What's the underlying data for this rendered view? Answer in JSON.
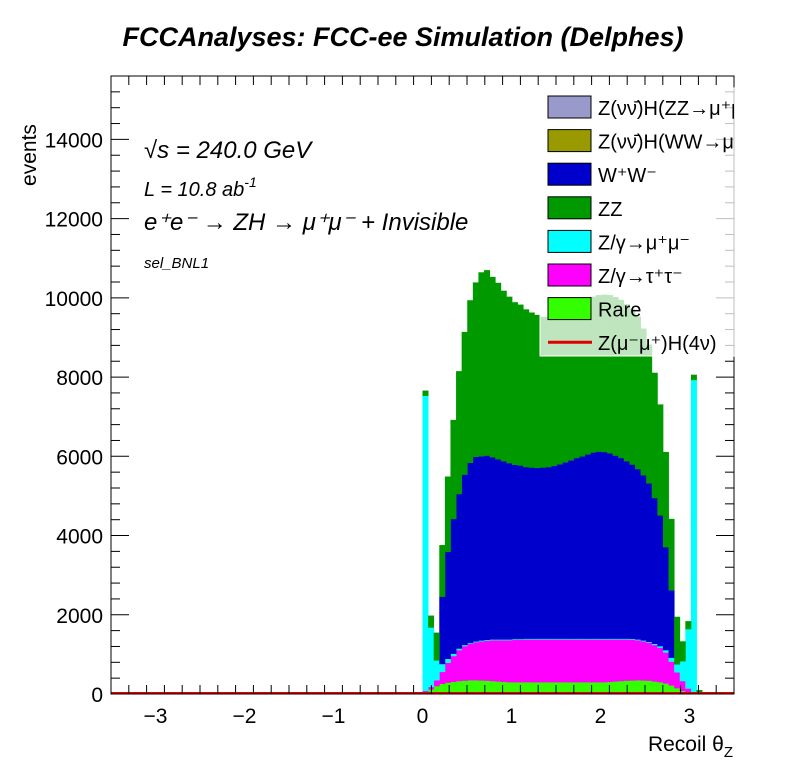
{
  "chart_data": {
    "type": "bar",
    "stacked": true,
    "title": "FCCAnalyses: FCC-ee Simulation (Delphes)",
    "xlabel": "Recoil θ_Z",
    "ylabel": "events",
    "xlim": [
      -3.5,
      3.5
    ],
    "ylim": [
      0,
      15600
    ],
    "xticks": [
      -3,
      -2,
      -1,
      0,
      1,
      2,
      3
    ],
    "xtick_labels": [
      "−3",
      "−2",
      "−1",
      "0",
      "1",
      "2",
      "3"
    ],
    "yticks": [
      0,
      2000,
      4000,
      6000,
      8000,
      10000,
      12000,
      14000
    ],
    "ytick_labels": [
      "0",
      "2000",
      "4000",
      "6000",
      "8000",
      "10000",
      "12000",
      "14000"
    ],
    "annotations": {
      "energy": "√s = 240.0 GeV",
      "lumi": "L = 10.8 ab",
      "lumi_exp": "-1",
      "process": "e⁺e⁻ → ZH → μ⁺μ⁻ + Invisible",
      "selection": "sel_BNL1"
    },
    "bins": [
      0.0314,
      0.0942,
      0.157,
      0.2199,
      0.2827,
      0.3456,
      0.4084,
      0.4712,
      0.5341,
      0.5969,
      0.6597,
      0.7226,
      0.7854,
      0.8482,
      0.9111,
      0.9739,
      1.0367,
      1.0996,
      1.1624,
      1.2252,
      1.2881,
      1.3509,
      1.4137,
      1.4765,
      1.5394,
      1.6022,
      1.665,
      1.7279,
      1.7907,
      1.8535,
      1.9164,
      1.9792,
      2.042,
      2.1049,
      2.1677,
      2.2305,
      2.2934,
      2.3562,
      2.419,
      2.4819,
      2.5447,
      2.6075,
      2.6704,
      2.7332,
      2.796,
      2.8589,
      2.9217,
      2.9845,
      3.0473,
      3.1102
    ],
    "bin_width": 0.0628,
    "series": [
      {
        "name": "Z(νν̄)H(ZZ→μ⁺μ⁻ν⁺ν⁻)",
        "color": "#9999cc",
        "values": [
          0,
          0,
          0,
          0,
          0,
          0,
          0,
          0,
          0,
          0,
          0,
          0,
          0,
          0,
          0,
          0,
          0,
          0,
          0,
          0,
          0,
          0,
          0,
          0,
          0,
          0,
          0,
          0,
          0,
          0,
          0,
          0,
          0,
          0,
          0,
          0,
          0,
          0,
          0,
          0,
          0,
          0,
          0,
          0,
          0,
          0,
          0,
          0,
          0,
          0
        ]
      },
      {
        "name": "Z(νν̄)H(WW→μ⁺νμ⁻ν)",
        "color": "#999900",
        "values": [
          0,
          0,
          0,
          0,
          0,
          0,
          0,
          0,
          0,
          0,
          0,
          0,
          0,
          0,
          0,
          0,
          0,
          0,
          0,
          0,
          0,
          0,
          0,
          0,
          0,
          0,
          0,
          0,
          0,
          0,
          0,
          0,
          0,
          0,
          0,
          0,
          0,
          0,
          0,
          0,
          0,
          0,
          0,
          0,
          0,
          0,
          0,
          0,
          0,
          0
        ]
      },
      {
        "name": "Rare",
        "color": "#33ff00",
        "values": [
          50,
          120,
          200,
          260,
          290,
          310,
          330,
          340,
          350,
          350,
          345,
          340,
          330,
          320,
          310,
          300,
          300,
          300,
          300,
          300,
          300,
          300,
          300,
          300,
          300,
          300,
          300,
          300,
          300,
          300,
          300,
          300,
          300,
          310,
          320,
          330,
          340,
          345,
          350,
          345,
          340,
          320,
          300,
          270,
          220,
          150,
          80,
          40,
          0,
          0
        ]
      },
      {
        "name": "Z/γ→τ⁺τ⁻",
        "color": "#ff00ff",
        "values": [
          30,
          60,
          150,
          300,
          500,
          650,
          780,
          870,
          920,
          960,
          990,
          1010,
          1030,
          1040,
          1050,
          1060,
          1070,
          1070,
          1080,
          1080,
          1080,
          1080,
          1080,
          1080,
          1080,
          1080,
          1080,
          1080,
          1080,
          1080,
          1080,
          1080,
          1080,
          1070,
          1060,
          1050,
          1040,
          1030,
          1010,
          990,
          960,
          920,
          870,
          780,
          600,
          400,
          250,
          100,
          30,
          0
        ]
      },
      {
        "name": "Z/γ→μ⁺μ⁻",
        "color": "#00ffff",
        "values": [
          7450,
          1500,
          500,
          200,
          100,
          60,
          40,
          30,
          20,
          20,
          20,
          20,
          20,
          20,
          20,
          20,
          20,
          20,
          20,
          20,
          20,
          20,
          20,
          20,
          20,
          20,
          20,
          20,
          20,
          20,
          20,
          20,
          20,
          20,
          20,
          20,
          20,
          20,
          20,
          20,
          20,
          30,
          40,
          60,
          100,
          200,
          500,
          1500,
          7900,
          0
        ]
      },
      {
        "name": "W⁺W⁻",
        "color": "#0000cc",
        "values": [
          0,
          0,
          0,
          1700,
          2700,
          3400,
          3900,
          4300,
          4550,
          4660,
          4650,
          4650,
          4600,
          4550,
          4500,
          4450,
          4400,
          4380,
          4330,
          4320,
          4310,
          4320,
          4330,
          4360,
          4400,
          4450,
          4500,
          4560,
          4600,
          4650,
          4700,
          4720,
          4710,
          4680,
          4620,
          4560,
          4480,
          4400,
          4300,
          4170,
          4000,
          3680,
          3300,
          2600,
          1700,
          0,
          0,
          0,
          0,
          0
        ]
      },
      {
        "name": "ZZ",
        "color": "#009900",
        "values": [
          130,
          300,
          700,
          1300,
          1900,
          2500,
          3100,
          3600,
          4100,
          4400,
          4640,
          4680,
          4550,
          4450,
          4300,
          4200,
          4100,
          4060,
          3980,
          3910,
          3860,
          3800,
          3780,
          3760,
          3760,
          3780,
          3800,
          3820,
          3870,
          3900,
          3930,
          3950,
          3970,
          3990,
          4000,
          3990,
          3960,
          3920,
          3850,
          3700,
          3500,
          3160,
          2800,
          2400,
          1800,
          1200,
          500,
          200,
          130,
          100
        ]
      },
      {
        "name": "Z(μ⁻μ⁺)H(4ν)",
        "color": "#dd0000",
        "values": [
          0,
          0,
          0,
          0,
          0,
          0,
          0,
          0,
          0,
          0,
          0,
          0,
          0,
          0,
          0,
          0,
          0,
          0,
          0,
          0,
          0,
          0,
          0,
          0,
          0,
          0,
          0,
          0,
          0,
          0,
          0,
          0,
          0,
          0,
          0,
          0,
          0,
          0,
          0,
          0,
          0,
          0,
          0,
          0,
          0,
          0,
          0,
          0,
          0,
          0
        ]
      }
    ],
    "legend": {
      "placement": "top-right",
      "entries": [
        {
          "label": "Z(νν̄)H(ZZ→μ⁺μ⁻ν⁺ν",
          "color": "#9999cc",
          "style": "box"
        },
        {
          "label": "Z(νν̄)H(WW→μ⁺νμ",
          "color": "#999900",
          "style": "box"
        },
        {
          "label": "W⁺W⁻",
          "color": "#0000cc",
          "style": "box"
        },
        {
          "label": "ZZ",
          "color": "#009900",
          "style": "box"
        },
        {
          "label": "Z/γ→μ⁺μ⁻",
          "color": "#00ffff",
          "style": "box"
        },
        {
          "label": "Z/γ→τ⁺τ⁻",
          "color": "#ff00ff",
          "style": "box"
        },
        {
          "label": "Rare",
          "color": "#33ff00",
          "style": "box"
        },
        {
          "label": "Z(μ⁻μ⁺)H(4ν)",
          "color": "#dd0000",
          "style": "line"
        }
      ]
    },
    "grid": false
  }
}
